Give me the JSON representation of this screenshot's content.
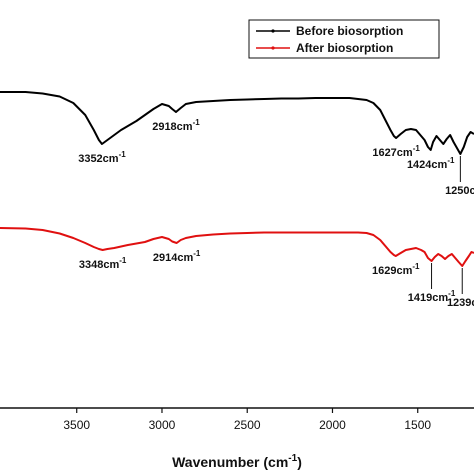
{
  "chart_data": {
    "type": "line",
    "xlabel": "Wavenumber (cm",
    "xlabel_sup": "-1",
    "xlabel_close": ")",
    "x_reversed": true,
    "xlim": [
      3950,
      1170
    ],
    "x_ticks": [
      3500,
      3000,
      2500,
      2000,
      1500
    ],
    "x_tick_labels": [
      "3500",
      "3000",
      "2500",
      "2000",
      "1500"
    ],
    "y_axis_shown": false,
    "grid": false,
    "legend_position": "top-right",
    "series": [
      {
        "name": "Before biosorption",
        "color": "#000000",
        "points": [
          [
            3950,
            0.0
          ],
          [
            3800,
            0.0
          ],
          [
            3700,
            1.5
          ],
          [
            3600,
            4.5
          ],
          [
            3520,
            11.0
          ],
          [
            3450,
            23.0
          ],
          [
            3400,
            38.0
          ],
          [
            3370,
            48.0
          ],
          [
            3352,
            52.0
          ],
          [
            3320,
            48.0
          ],
          [
            3280,
            43.0
          ],
          [
            3240,
            38.0
          ],
          [
            3200,
            34.0
          ],
          [
            3150,
            29.0
          ],
          [
            3100,
            23.0
          ],
          [
            3050,
            17.0
          ],
          [
            3000,
            12.0
          ],
          [
            2960,
            14.0
          ],
          [
            2940,
            17.0
          ],
          [
            2918,
            20.0
          ],
          [
            2890,
            16.0
          ],
          [
            2860,
            12.0
          ],
          [
            2800,
            10.0
          ],
          [
            2700,
            9.0
          ],
          [
            2600,
            8.0
          ],
          [
            2500,
            7.5
          ],
          [
            2400,
            7.0
          ],
          [
            2300,
            6.5
          ],
          [
            2200,
            6.5
          ],
          [
            2100,
            6.0
          ],
          [
            2000,
            6.0
          ],
          [
            1900,
            6.0
          ],
          [
            1850,
            7.0
          ],
          [
            1800,
            8.0
          ],
          [
            1760,
            11.0
          ],
          [
            1720,
            18.0
          ],
          [
            1690,
            28.0
          ],
          [
            1660,
            38.0
          ],
          [
            1640,
            44.0
          ],
          [
            1627,
            46.0
          ],
          [
            1600,
            42.0
          ],
          [
            1570,
            38.0
          ],
          [
            1540,
            37.0
          ],
          [
            1510,
            38.0
          ],
          [
            1480,
            44.0
          ],
          [
            1460,
            48.0
          ],
          [
            1440,
            55.0
          ],
          [
            1424,
            58.0
          ],
          [
            1410,
            50.0
          ],
          [
            1390,
            44.0
          ],
          [
            1370,
            48.0
          ],
          [
            1350,
            52.0
          ],
          [
            1330,
            47.0
          ],
          [
            1310,
            43.0
          ],
          [
            1290,
            50.0
          ],
          [
            1270,
            56.0
          ],
          [
            1250,
            62.0
          ],
          [
            1230,
            55.0
          ],
          [
            1210,
            45.0
          ],
          [
            1190,
            40.0
          ],
          [
            1170,
            42.0
          ]
        ],
        "annotations": [
          {
            "x": 3352,
            "label": "3352cm",
            "sup": "-1",
            "side": "below"
          },
          {
            "x": 2918,
            "label": "2918cm",
            "sup": "-1",
            "side": "below"
          },
          {
            "x": 1627,
            "label": "1627cm",
            "sup": "-1",
            "side": "below"
          },
          {
            "x": 1424,
            "label": "1424cm",
            "sup": "-1",
            "side": "below"
          },
          {
            "x": 1250,
            "label": "1250c",
            "sup": "",
            "side": "below-line"
          }
        ]
      },
      {
        "name": "After biosorption",
        "color": "#e01010",
        "points": [
          [
            3950,
            0.0
          ],
          [
            3800,
            0.5
          ],
          [
            3700,
            2.0
          ],
          [
            3600,
            5.5
          ],
          [
            3520,
            10.0
          ],
          [
            3450,
            15.0
          ],
          [
            3400,
            19.0
          ],
          [
            3370,
            21.0
          ],
          [
            3348,
            22.0
          ],
          [
            3320,
            21.0
          ],
          [
            3280,
            20.0
          ],
          [
            3240,
            18.5
          ],
          [
            3200,
            17.0
          ],
          [
            3150,
            15.5
          ],
          [
            3100,
            14.0
          ],
          [
            3050,
            11.0
          ],
          [
            3000,
            9.0
          ],
          [
            2960,
            11.0
          ],
          [
            2940,
            13.5
          ],
          [
            2914,
            15.0
          ],
          [
            2890,
            12.0
          ],
          [
            2860,
            10.0
          ],
          [
            2800,
            8.0
          ],
          [
            2700,
            6.5
          ],
          [
            2600,
            5.5
          ],
          [
            2500,
            5.0
          ],
          [
            2400,
            4.5
          ],
          [
            2300,
            4.5
          ],
          [
            2200,
            4.5
          ],
          [
            2100,
            4.5
          ],
          [
            2000,
            4.5
          ],
          [
            1900,
            4.5
          ],
          [
            1850,
            4.5
          ],
          [
            1800,
            5.0
          ],
          [
            1760,
            7.0
          ],
          [
            1720,
            12.0
          ],
          [
            1690,
            18.0
          ],
          [
            1660,
            24.0
          ],
          [
            1640,
            27.0
          ],
          [
            1629,
            28.0
          ],
          [
            1600,
            25.0
          ],
          [
            1570,
            22.0
          ],
          [
            1540,
            21.0
          ],
          [
            1510,
            20.0
          ],
          [
            1480,
            22.0
          ],
          [
            1460,
            24.0
          ],
          [
            1440,
            30.0
          ],
          [
            1419,
            33.0
          ],
          [
            1400,
            29.0
          ],
          [
            1380,
            26.0
          ],
          [
            1360,
            28.0
          ],
          [
            1340,
            31.0
          ],
          [
            1320,
            28.0
          ],
          [
            1300,
            26.0
          ],
          [
            1280,
            30.0
          ],
          [
            1260,
            34.0
          ],
          [
            1239,
            38.0
          ],
          [
            1220,
            33.0
          ],
          [
            1200,
            28.0
          ],
          [
            1185,
            24.0
          ],
          [
            1170,
            25.0
          ]
        ],
        "annotations": [
          {
            "x": 3348,
            "label": "3348cm",
            "sup": "-1",
            "side": "below"
          },
          {
            "x": 2914,
            "label": "2914cm",
            "sup": "-1",
            "side": "below"
          },
          {
            "x": 1629,
            "label": "1629cm",
            "sup": "-1",
            "side": "below"
          },
          {
            "x": 1419,
            "label": "1419cm",
            "sup": "-1",
            "side": "below-line"
          },
          {
            "x": 1239,
            "label": "1239c",
            "sup": "",
            "side": "below-line"
          }
        ]
      }
    ]
  }
}
